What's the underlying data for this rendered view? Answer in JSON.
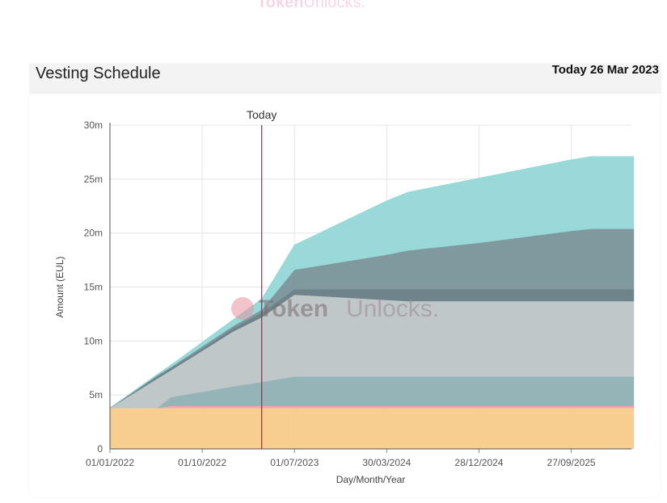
{
  "header": {
    "brand_bold": "Token",
    "brand_light": "Unlocks.",
    "title": "Vesting Schedule",
    "date_label": "Today 26 Mar 2023"
  },
  "chart_data": {
    "type": "area",
    "stacked": true,
    "xlabel": "Day/Month/Year",
    "ylabel": "Amount (EUL)",
    "x_tick_labels": [
      "01/01/2022",
      "01/10/2022",
      "01/07/2023",
      "30/03/2024",
      "28/12/2024",
      "27/09/2025"
    ],
    "y_tick_labels": [
      "0",
      "5m",
      "10m",
      "15m",
      "20m",
      "25m",
      "30m"
    ],
    "ylim": [
      0,
      30000000
    ],
    "grid": true,
    "today_marker": {
      "label": "Today",
      "date": "2023-03-26"
    },
    "x": [
      "2022-01-01",
      "2022-05-20",
      "2022-07-01",
      "2022-10-01",
      "2023-01-01",
      "2023-03-26",
      "2023-07-01",
      "2024-03-30",
      "2024-06-01",
      "2024-12-28",
      "2025-09-27",
      "2025-11-25",
      "2026-03-31"
    ],
    "series": [
      {
        "color": "#f7cc8d",
        "values": [
          3800000,
          3800000,
          3800000,
          3800000,
          3800000,
          3800000,
          3800000,
          3800000,
          3800000,
          3800000,
          3800000,
          3800000,
          3800000
        ]
      },
      {
        "color": "#f2a1a6",
        "values": [
          0,
          0,
          200000,
          200000,
          200000,
          200000,
          200000,
          200000,
          200000,
          200000,
          200000,
          200000,
          200000
        ]
      },
      {
        "color": "#91b2b6",
        "values": [
          0,
          0,
          800000,
          1300000,
          1800000,
          2200000,
          2700000,
          2700000,
          2700000,
          2700000,
          2700000,
          2700000,
          2700000
        ]
      },
      {
        "color": "#bdc6c8",
        "values": [
          0,
          2700000,
          2500000,
          3800000,
          5100000,
          6000000,
          7600000,
          7100000,
          7000000,
          7000000,
          7000000,
          7000000,
          7000000
        ]
      },
      {
        "color": "#6b8187",
        "values": [
          0,
          200000,
          200000,
          200000,
          300000,
          400000,
          500000,
          1000000,
          1100000,
          1100000,
          1100000,
          1100000,
          1100000
        ]
      },
      {
        "color": "#7b969b",
        "values": [
          0,
          100000,
          100000,
          200000,
          200000,
          300000,
          1800000,
          3200000,
          3600000,
          4300000,
          5400000,
          5600000,
          5600000
        ]
      },
      {
        "color": "#96d8d8",
        "values": [
          0,
          100000,
          200000,
          400000,
          600000,
          1000000,
          2300000,
          5000000,
          5400000,
          6000000,
          6600000,
          6700000,
          6700000
        ]
      }
    ]
  }
}
